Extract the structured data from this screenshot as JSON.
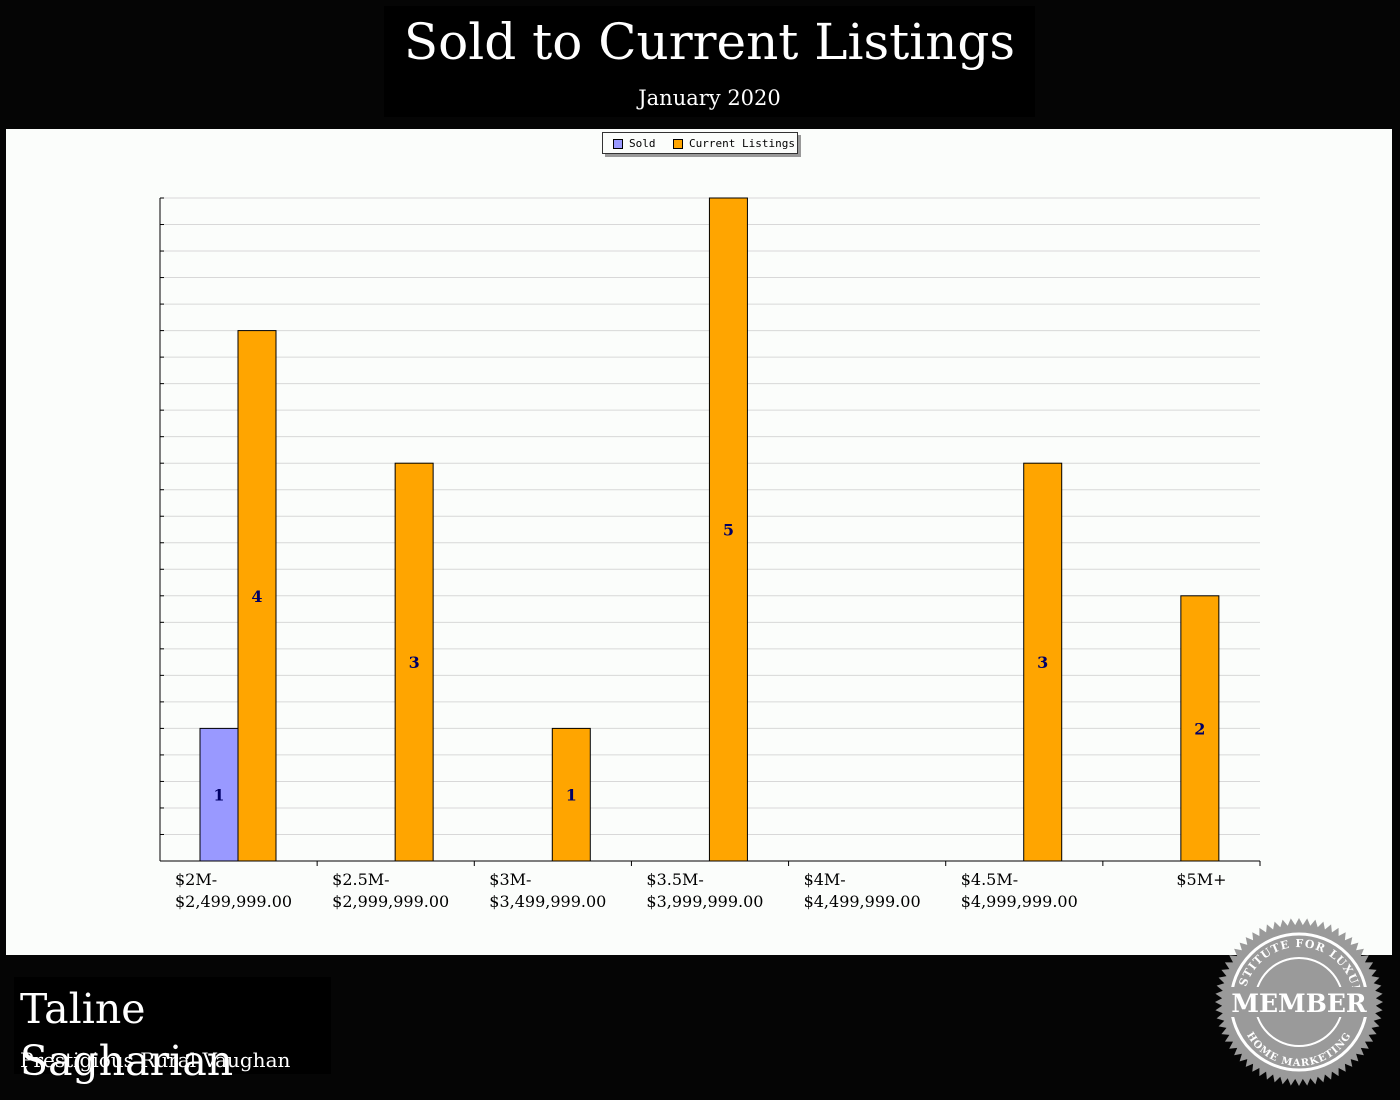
{
  "header": {
    "title": "Sold to Current Listings",
    "subtitle": "January 2020"
  },
  "footer": {
    "agent_name": "Taline Sagharian",
    "area": "Prestigious Rural Vaughan"
  },
  "badge": {
    "top_text": "INSTITUTE FOR LUXURY",
    "center_text": "MEMBER",
    "bottom_text": "HOME MARKETING"
  },
  "colors": {
    "sold": "#9999ff",
    "current_listings": "#ffa500"
  },
  "chart_data": {
    "type": "bar",
    "title": "Sold to Current Listings",
    "subtitle": "January 2020",
    "xlabel": "",
    "ylabel": "",
    "ylim": [
      0,
      5
    ],
    "grid": true,
    "legend_position": "top-center",
    "categories": [
      [
        "$2M-",
        "$2,499,999.00"
      ],
      [
        "$2.5M-",
        "$2,999,999.00"
      ],
      [
        "$3M-",
        "$3,499,999.00"
      ],
      [
        "$3.5M-",
        "$3,999,999.00"
      ],
      [
        "$4M-",
        "$4,499,999.00"
      ],
      [
        "$4.5M-",
        "$4,999,999.00"
      ],
      [
        "$5M+"
      ]
    ],
    "series": [
      {
        "name": "Sold",
        "values": [
          1,
          0,
          0,
          0,
          0,
          0,
          0
        ]
      },
      {
        "name": "Current Listings",
        "values": [
          4,
          3,
          1,
          5,
          0,
          3,
          2
        ]
      }
    ]
  }
}
